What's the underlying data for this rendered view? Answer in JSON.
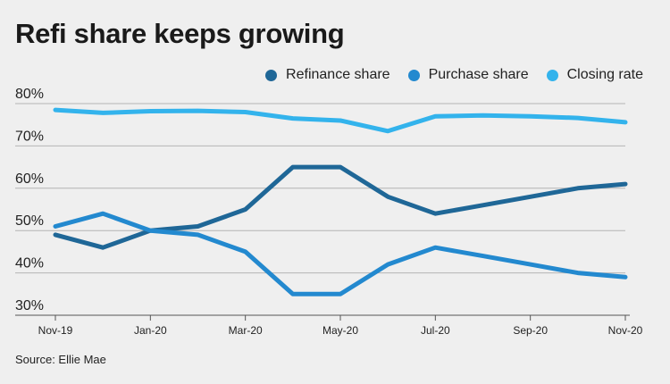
{
  "title": "Refi share keeps growing",
  "source": "Source: Ellie Mae",
  "colors": {
    "refinance": "#1f6797",
    "purchase": "#2389cf",
    "closing": "#33b3ec",
    "grid": "#b4b4b4",
    "background": "#efefef"
  },
  "chart_data": {
    "type": "line",
    "x": [
      "Nov-19",
      "Dec-19",
      "Jan-20",
      "Feb-20",
      "Mar-20",
      "Apr-20",
      "May-20",
      "Jun-20",
      "Jul-20",
      "Aug-20",
      "Sep-20",
      "Oct-20",
      "Nov-20"
    ],
    "x_tick_labels": [
      "Nov-19",
      "Jan-20",
      "Mar-20",
      "May-20",
      "Jul-20",
      "Sep-20",
      "Nov-20"
    ],
    "y_tick_labels": [
      "80%",
      "70%",
      "60%",
      "50%",
      "40%",
      "30%"
    ],
    "ylim": [
      30,
      80
    ],
    "grid": true,
    "legend_position": "top-right",
    "series": [
      {
        "name": "Refinance share",
        "color_key": "refinance",
        "values": [
          49,
          46,
          50,
          51,
          55,
          65,
          65,
          58,
          54,
          56,
          58,
          60,
          61
        ]
      },
      {
        "name": "Purchase share",
        "color_key": "purchase",
        "values": [
          51,
          54,
          50,
          49,
          45,
          35,
          35,
          42,
          46,
          44,
          42,
          40,
          39
        ]
      },
      {
        "name": "Closing rate",
        "color_key": "closing",
        "values": [
          78.5,
          77.8,
          78.2,
          78.3,
          78,
          76.5,
          76,
          73.5,
          77,
          77.2,
          77,
          76.6,
          75.6
        ]
      }
    ]
  }
}
